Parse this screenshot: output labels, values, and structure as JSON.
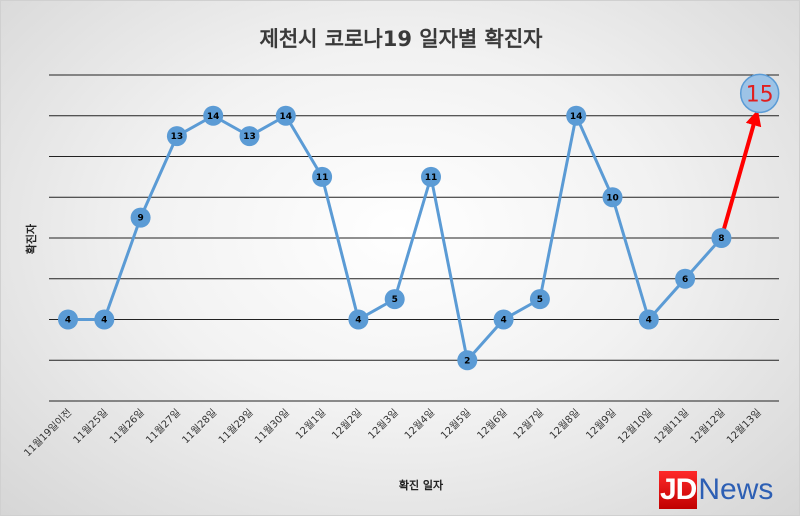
{
  "chart_data": {
    "type": "line",
    "title": "제천시 코로나19 일자별 확진자",
    "xlabel": "확진 일자",
    "ylabel": "확진자",
    "categories": [
      "11월19일이전",
      "11월25일",
      "11월26일",
      "11월27일",
      "11월28일",
      "11월29일",
      "11월30일",
      "12월1일",
      "12월2일",
      "12월3일",
      "12월4일",
      "12월5일",
      "12월6일",
      "12월7일",
      "12월8일",
      "12월9일",
      "12월10일",
      "12월11일",
      "12월12일",
      "12월13일"
    ],
    "values": [
      4,
      4,
      9,
      13,
      14,
      13,
      14,
      11,
      4,
      5,
      11,
      2,
      4,
      5,
      14,
      10,
      4,
      6,
      8,
      15
    ],
    "ylim": [
      0,
      16
    ],
    "grid": true,
    "legend": "none",
    "series_color": "#5b9bd5",
    "highlight_color": "#ff0000",
    "highlight_last": true
  },
  "logo": {
    "part1": "JD",
    "part2": "News"
  }
}
